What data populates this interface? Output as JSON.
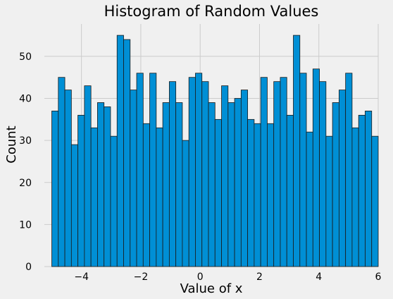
{
  "chart_data": {
    "type": "bar",
    "title": "Histogram of Random Values",
    "xlabel": "Value of x",
    "ylabel": "Count",
    "xlim": [
      -5.25,
      6.0
    ],
    "ylim": [
      0,
      57.7
    ],
    "grid": true,
    "x_ticks": [
      -4,
      -2,
      0,
      2,
      4,
      6
    ],
    "y_ticks": [
      0,
      10,
      20,
      30,
      40,
      50
    ],
    "bin_start": -5.0,
    "bin_width": 0.22,
    "values": [
      37,
      45,
      42,
      29,
      36,
      43,
      33,
      39,
      38,
      31,
      55,
      54,
      42,
      46,
      34,
      46,
      33,
      39,
      44,
      39,
      30,
      45,
      46,
      44,
      39,
      35,
      43,
      39,
      40,
      42,
      35,
      34,
      45,
      34,
      44,
      45,
      36,
      55,
      46,
      32,
      47,
      44,
      31,
      39,
      42,
      46,
      33,
      36,
      37,
      31
    ],
    "colors": {
      "bar": "#008fd5",
      "edge": "#1a1a1a",
      "background": "#f0f0f0",
      "grid": "#cbcbcb"
    }
  }
}
